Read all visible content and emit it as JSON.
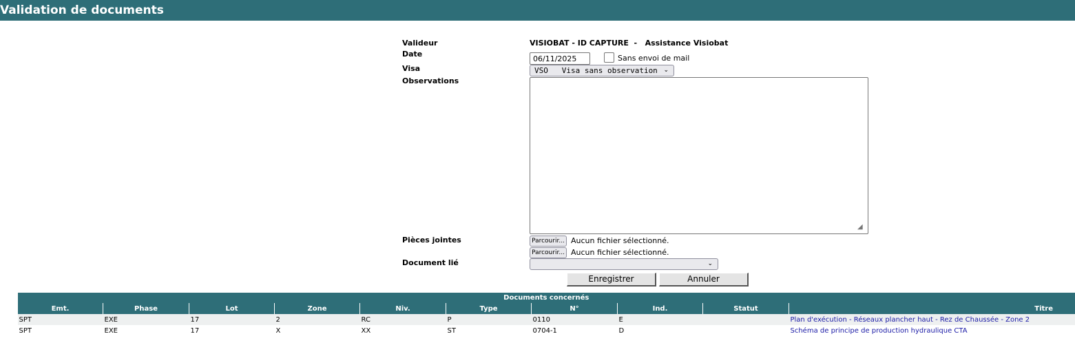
{
  "header": {
    "title": "Validation de documents"
  },
  "form": {
    "validator_label": "Valideur",
    "validator_value": "VISIOBAT - ID CAPTURE  -   Assistance Visiobat",
    "date_label": "Date",
    "date_value": "06/11/2025",
    "no_mail_label": "Sans envoi de mail",
    "no_mail_checked": false,
    "visa_label": "Visa",
    "visa_value": "VSO   Visa sans observation",
    "observations_label": "Observations",
    "observations_value": "",
    "attachments_label": "Pièces jointes",
    "browse_label": "Parcourir...",
    "no_file": "Aucun fichier sélectionné.",
    "linked_doc_label": "Document lié",
    "linked_doc_value": "",
    "save_label": "Enregistrer",
    "cancel_label": "Annuler"
  },
  "table": {
    "caption": "Documents concernés",
    "columns": [
      "Emt.",
      "Phase",
      "Lot",
      "Zone",
      "Niv.",
      "Type",
      "N°",
      "Ind.",
      "Statut",
      "Titre"
    ],
    "rows": [
      [
        "SPT",
        "EXE",
        "17",
        "2",
        "RC",
        "P",
        "0110",
        "E",
        "",
        "Plan d'exécution - Réseaux plancher haut - Rez de Chaussée - Zone 2"
      ],
      [
        "SPT",
        "EXE",
        "17",
        "X",
        "XX",
        "ST",
        "0704-1",
        "D",
        "",
        "Schéma de principe de production hydraulique CTA"
      ]
    ]
  }
}
